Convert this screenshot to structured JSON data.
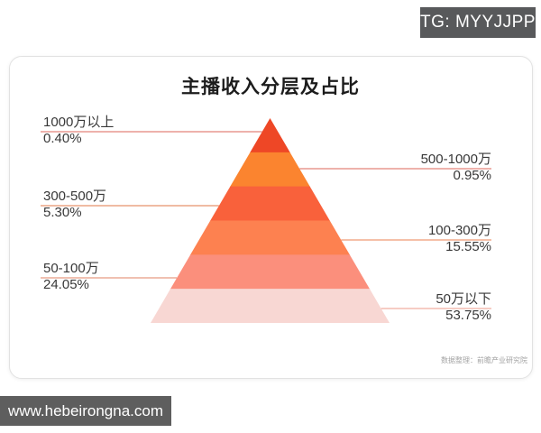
{
  "tg_badge": {
    "label": "TG: MYYJJPP"
  },
  "watermark": {
    "label": "www.hebeirongna.com"
  },
  "chart": {
    "title": "主播收入分层及占比",
    "source": "数据整理：前瞻产业研究院"
  },
  "chart_data": {
    "type": "pyramid",
    "title": "主播收入分层及占比",
    "note": "levels ordered top of pyramid to bottom; equal-height bands; value = percent share",
    "levels": [
      {
        "range": "1000万以上",
        "percent": "0.40%",
        "value": 0.4,
        "color": "#ee4726",
        "line_color": "#e4837a",
        "label_side": "left"
      },
      {
        "range": "500-1000万",
        "percent": "0.95%",
        "value": 0.95,
        "color": "#fb842f",
        "line_color": "#e4837a",
        "label_side": "right"
      },
      {
        "range": "300-500万",
        "percent": "5.30%",
        "value": 5.3,
        "color": "#f9613b",
        "line_color": "#e8926c",
        "label_side": "left"
      },
      {
        "range": "100-300万",
        "percent": "15.55%",
        "value": 15.55,
        "color": "#fd8150",
        "line_color": "#ef9a73",
        "label_side": "right"
      },
      {
        "range": "50-100万",
        "percent": "24.05%",
        "value": 24.05,
        "color": "#fb8f7c",
        "line_color": "#e89a82",
        "label_side": "left"
      },
      {
        "range": "50万以下",
        "percent": "53.75%",
        "value": 53.75,
        "color": "#f8d7d3",
        "line_color": "#f0ada0",
        "label_side": "right"
      }
    ]
  }
}
